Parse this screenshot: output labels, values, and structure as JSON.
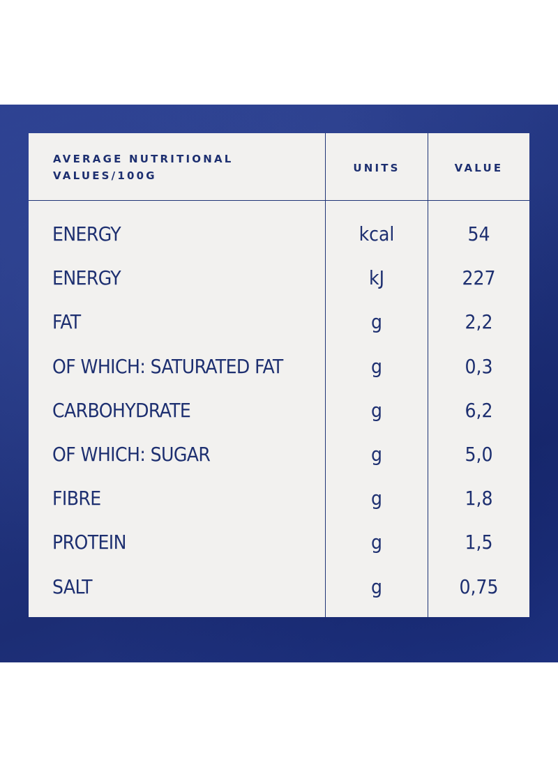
{
  "table": {
    "header": {
      "label": "AVERAGE NUTRITIONAL VALUES/100G",
      "units": "UNITS",
      "value": "VALUE"
    },
    "rows": [
      {
        "name": "ENERGY",
        "unit": "kcal",
        "value": "54"
      },
      {
        "name": "ENERGY",
        "unit": "kJ",
        "value": "227"
      },
      {
        "name": "FAT",
        "unit": "g",
        "value": "2,2"
      },
      {
        "name": "OF WHICH: SATURATED FAT",
        "unit": "g",
        "value": "0,3"
      },
      {
        "name": "CARBOHYDRATE",
        "unit": "g",
        "value": "6,2"
      },
      {
        "name": "OF WHICH: SUGAR",
        "unit": "g",
        "value": "5,0"
      },
      {
        "name": "FIBRE",
        "unit": "g",
        "value": "1,8"
      },
      {
        "name": "PROTEIN",
        "unit": "g",
        "value": "1,5"
      },
      {
        "name": "SALT",
        "unit": "g",
        "value": "0,75"
      }
    ]
  },
  "colors": {
    "background_band": "#23388a",
    "panel": "#f2f1ef",
    "text": "#1d2f70",
    "rule": "#1f3476"
  }
}
